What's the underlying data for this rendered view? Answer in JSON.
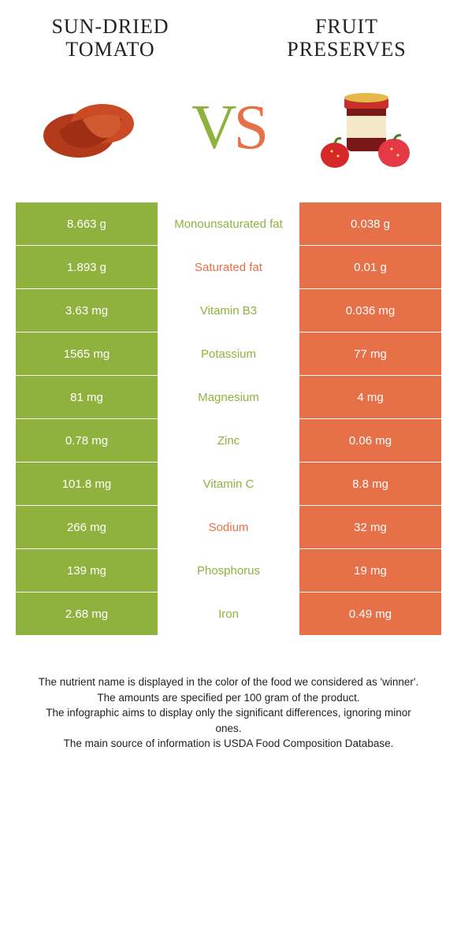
{
  "colors": {
    "left": "#8fb23e",
    "right": "#e67048",
    "background": "#ffffff",
    "text": "#222222"
  },
  "header": {
    "left_title": "Sun-dried tomato",
    "right_title": "Fruit preserves",
    "vs_v": "V",
    "vs_s": "S"
  },
  "table": {
    "rows": [
      {
        "left": "8.663 g",
        "label": "Monounsaturated fat",
        "right": "0.038 g",
        "winner": "left"
      },
      {
        "left": "1.893 g",
        "label": "Saturated fat",
        "right": "0.01 g",
        "winner": "right"
      },
      {
        "left": "3.63 mg",
        "label": "Vitamin B3",
        "right": "0.036 mg",
        "winner": "left"
      },
      {
        "left": "1565 mg",
        "label": "Potassium",
        "right": "77 mg",
        "winner": "left"
      },
      {
        "left": "81 mg",
        "label": "Magnesium",
        "right": "4 mg",
        "winner": "left"
      },
      {
        "left": "0.78 mg",
        "label": "Zinc",
        "right": "0.06 mg",
        "winner": "left"
      },
      {
        "left": "101.8 mg",
        "label": "Vitamin C",
        "right": "8.8 mg",
        "winner": "left"
      },
      {
        "left": "266 mg",
        "label": "Sodium",
        "right": "32 mg",
        "winner": "right"
      },
      {
        "left": "139 mg",
        "label": "Phosphorus",
        "right": "19 mg",
        "winner": "left"
      },
      {
        "left": "2.68 mg",
        "label": "Iron",
        "right": "0.49 mg",
        "winner": "left"
      }
    ]
  },
  "footer": {
    "line1": "The nutrient name is displayed in the color of the food we considered as 'winner'.",
    "line2": "The amounts are specified per 100 gram of the product.",
    "line3": "The infographic aims to display only the significant differences, ignoring minor ones.",
    "line4": "The main source of information is USDA Food Composition Database."
  }
}
